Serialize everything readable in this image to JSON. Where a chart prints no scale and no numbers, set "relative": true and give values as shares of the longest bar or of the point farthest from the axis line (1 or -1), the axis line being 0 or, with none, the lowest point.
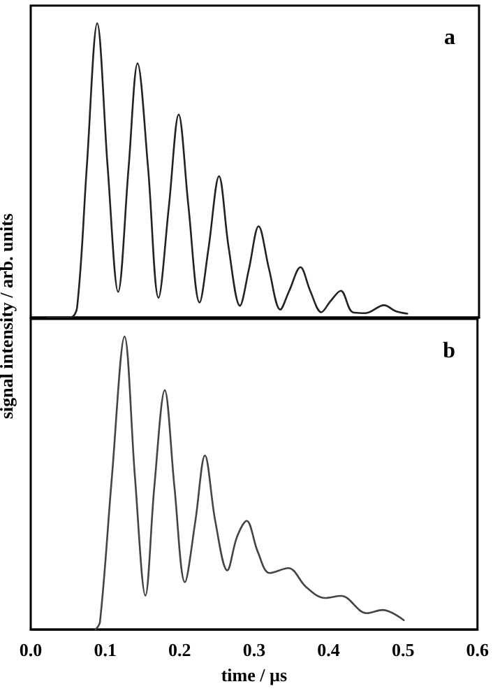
{
  "chart_data": [
    {
      "type": "line",
      "title": "a",
      "ylabel": "signal intensity / arb. units",
      "relative": true,
      "xlim": [
        0,
        0.6
      ],
      "xticks": [
        0.0,
        0.1,
        0.2,
        0.3,
        0.4,
        0.5,
        0.6
      ],
      "tick_labels": false,
      "grid": false,
      "marker": "none",
      "line_style": "solid",
      "series": [
        {
          "color": "#222222",
          "x": [
            0.022,
            0.053,
            0.062,
            0.075,
            0.089,
            0.103,
            0.117,
            0.131,
            0.143,
            0.157,
            0.171,
            0.185,
            0.198,
            0.211,
            0.226,
            0.238,
            0.252,
            0.265,
            0.28,
            0.292,
            0.305,
            0.319,
            0.334,
            0.346,
            0.361,
            0.374,
            0.389,
            0.401,
            0.415,
            0.431,
            0.448,
            0.473,
            0.488,
            0.504
          ],
          "values": [
            0,
            0,
            0.033,
            0.51,
            1.0,
            0.51,
            0.087,
            0.51,
            0.864,
            0.51,
            0.067,
            0.38,
            0.69,
            0.38,
            0.051,
            0.236,
            0.48,
            0.236,
            0.04,
            0.164,
            0.31,
            0.164,
            0.027,
            0.091,
            0.171,
            0.091,
            0.018,
            0.055,
            0.091,
            0.018,
            0.015,
            0.042,
            0.022,
            0.013
          ]
        }
      ]
    },
    {
      "type": "line",
      "title": "b",
      "xlabel": "time / µs",
      "relative": true,
      "xlim": [
        0,
        0.6
      ],
      "xticks": [
        {
          "value": 0,
          "label": "0.0"
        },
        0.1,
        0.2,
        0.3,
        0.4,
        0.5,
        0.6
      ],
      "tick_labels": "x",
      "grid": false,
      "marker": "none",
      "line_style": "solid",
      "series": [
        {
          "color": "#444444",
          "x": [
            0.087,
            0.093,
            0.109,
            0.126,
            0.14,
            0.154,
            0.166,
            0.18,
            0.193,
            0.207,
            0.221,
            0.234,
            0.248,
            0.264,
            0.277,
            0.29,
            0.305,
            0.321,
            0.346,
            0.37,
            0.395,
            0.417,
            0.451,
            0.473,
            0.501
          ],
          "values": [
            0,
            0.026,
            0.52,
            1.0,
            0.52,
            0.116,
            0.487,
            0.817,
            0.487,
            0.162,
            0.368,
            0.594,
            0.368,
            0.202,
            0.316,
            0.371,
            0.265,
            0.193,
            0.21,
            0.145,
            0.108,
            0.115,
            0.056,
            0.067,
            0.032
          ]
        }
      ]
    }
  ]
}
